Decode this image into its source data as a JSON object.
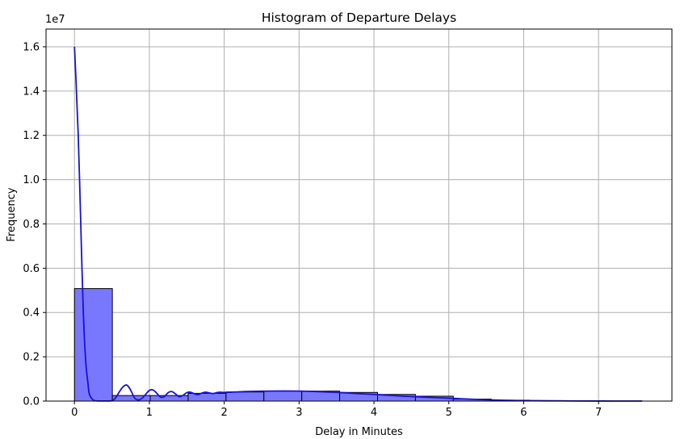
{
  "chart_data": {
    "type": "histogram",
    "title": "Histogram of Departure Delays",
    "xlabel": "Delay in Minutes",
    "ylabel": "Frequency",
    "y_offset_label": "1e7",
    "xlim": [
      -0.38,
      7.98
    ],
    "ylim": [
      0,
      16800000
    ],
    "x_ticks": [
      0,
      1,
      2,
      3,
      4,
      5,
      6,
      7
    ],
    "y_ticks": [
      0,
      2000000,
      4000000,
      6000000,
      8000000,
      10000000,
      12000000,
      14000000,
      16000000
    ],
    "y_tick_labels": [
      "0.0",
      "0.2",
      "0.4",
      "0.6",
      "0.8",
      "1.0",
      "1.2",
      "1.4",
      "1.6"
    ],
    "grid": true,
    "bin_width": 0.506,
    "bins": [
      {
        "x0": 0.0,
        "count": 5080000
      },
      {
        "x0": 0.506,
        "count": 250000
      },
      {
        "x0": 1.012,
        "count": 250000
      },
      {
        "x0": 1.518,
        "count": 350000
      },
      {
        "x0": 2.024,
        "count": 410000
      },
      {
        "x0": 2.53,
        "count": 450000
      },
      {
        "x0": 3.036,
        "count": 450000
      },
      {
        "x0": 3.542,
        "count": 390000
      },
      {
        "x0": 4.048,
        "count": 300000
      },
      {
        "x0": 4.554,
        "count": 220000
      },
      {
        "x0": 5.06,
        "count": 90000
      },
      {
        "x0": 5.566,
        "count": 40000
      },
      {
        "x0": 6.072,
        "count": 20000
      },
      {
        "x0": 6.578,
        "count": 10000
      },
      {
        "x0": 7.084,
        "count": 5000
      }
    ],
    "kde": {
      "x": [
        0.0,
        0.02,
        0.05,
        0.08,
        0.1,
        0.12,
        0.15,
        0.18,
        0.2,
        0.25,
        0.3,
        0.4,
        0.5,
        0.55,
        0.6,
        0.65,
        0.7,
        0.75,
        0.8,
        0.85,
        0.9,
        0.95,
        1.0,
        1.05,
        1.1,
        1.15,
        1.2,
        1.25,
        1.3,
        1.35,
        1.4,
        1.45,
        1.5,
        1.55,
        1.6,
        1.65,
        1.7,
        1.75,
        1.8,
        1.85,
        1.9,
        1.95,
        2.0,
        2.2,
        2.4,
        2.6,
        2.8,
        3.0,
        3.2,
        3.4,
        3.6,
        3.8,
        4.0,
        4.2,
        4.4,
        4.6,
        4.8,
        5.0,
        5.2,
        5.4,
        5.6,
        5.8,
        6.0,
        6.5,
        7.0,
        7.58
      ],
      "y": [
        16000000,
        14500000,
        12000000,
        8500000,
        6000000,
        3800000,
        1800000,
        800000,
        300000,
        50000,
        10000,
        5000,
        20000,
        150000,
        420000,
        650000,
        720000,
        500000,
        150000,
        50000,
        120000,
        300000,
        480000,
        500000,
        350000,
        180000,
        200000,
        380000,
        430000,
        320000,
        200000,
        260000,
        380000,
        400000,
        330000,
        290000,
        360000,
        400000,
        370000,
        340000,
        380000,
        400000,
        390000,
        420000,
        440000,
        450000,
        455000,
        450000,
        435000,
        405000,
        375000,
        335000,
        300000,
        260000,
        220000,
        190000,
        160000,
        130000,
        100000,
        72000,
        50000,
        32000,
        20000,
        8000,
        2500,
        500
      ]
    },
    "colors": {
      "bar_fill": "#7878ff",
      "bar_edge": "#000000",
      "kde_line": "#1a10d6",
      "grid": "#b0b0b0"
    }
  }
}
